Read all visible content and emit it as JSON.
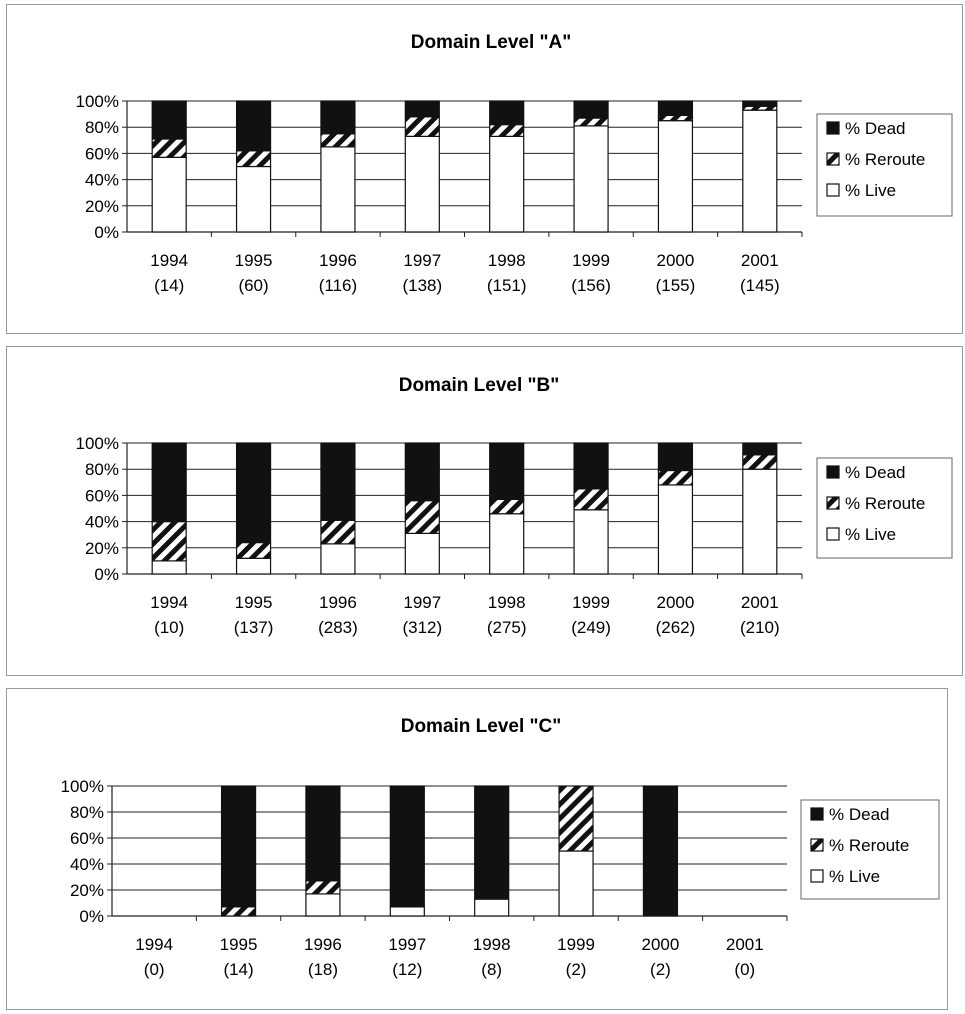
{
  "chart_data": [
    {
      "type": "bar",
      "stacked": true,
      "percent": true,
      "title": "Domain Level \"A\"",
      "categories": [
        "1994",
        "1995",
        "1996",
        "1997",
        "1998",
        "1999",
        "2000",
        "2001"
      ],
      "sublabels": [
        "(14)",
        "(60)",
        "(116)",
        "(138)",
        "(151)",
        "(156)",
        "(155)",
        "(145)"
      ],
      "yticks": [
        "0%",
        "20%",
        "40%",
        "60%",
        "80%",
        "100%"
      ],
      "ylim": [
        0,
        100
      ],
      "grid": true,
      "legend_position": "right",
      "legend": [
        "% Dead",
        "% Reroute",
        "% Live"
      ],
      "series": [
        {
          "name": "% Live",
          "fill": "white",
          "values": [
            57,
            50,
            65,
            73,
            73,
            81,
            85,
            93
          ]
        },
        {
          "name": "% Reroute",
          "fill": "hatch",
          "values": [
            14,
            12,
            10,
            15,
            9,
            6,
            4,
            3
          ]
        },
        {
          "name": "% Dead",
          "fill": "black",
          "values": [
            29,
            38,
            25,
            12,
            18,
            13,
            11,
            4
          ]
        }
      ]
    },
    {
      "type": "bar",
      "stacked": true,
      "percent": true,
      "title": "Domain Level \"B\"",
      "categories": [
        "1994",
        "1995",
        "1996",
        "1997",
        "1998",
        "1999",
        "2000",
        "2001"
      ],
      "sublabels": [
        "(10)",
        "(137)",
        "(283)",
        "(312)",
        "(275)",
        "(249)",
        "(262)",
        "(210)"
      ],
      "yticks": [
        "0%",
        "20%",
        "40%",
        "60%",
        "80%",
        "100%"
      ],
      "ylim": [
        0,
        100
      ],
      "grid": true,
      "legend_position": "right",
      "legend": [
        "% Dead",
        "% Reroute",
        "% Live"
      ],
      "series": [
        {
          "name": "% Live",
          "fill": "white",
          "values": [
            10,
            12,
            23,
            31,
            46,
            49,
            68,
            80
          ]
        },
        {
          "name": "% Reroute",
          "fill": "hatch",
          "values": [
            30,
            12,
            18,
            25,
            11,
            16,
            11,
            11
          ]
        },
        {
          "name": "% Dead",
          "fill": "black",
          "values": [
            60,
            76,
            59,
            44,
            43,
            35,
            21,
            9
          ]
        }
      ]
    },
    {
      "type": "bar",
      "stacked": true,
      "percent": true,
      "title": "Domain Level \"C\"",
      "categories": [
        "1994",
        "1995",
        "1996",
        "1997",
        "1998",
        "1999",
        "2000",
        "2001"
      ],
      "sublabels": [
        "(0)",
        "(14)",
        "(18)",
        "(12)",
        "(8)",
        "(2)",
        "(2)",
        "(0)"
      ],
      "yticks": [
        "0%",
        "20%",
        "40%",
        "60%",
        "80%",
        "100%"
      ],
      "ylim": [
        0,
        100
      ],
      "grid": true,
      "legend_position": "right",
      "legend": [
        "% Dead",
        "% Reroute",
        "% Live"
      ],
      "series": [
        {
          "name": "% Live",
          "fill": "white",
          "values": [
            0,
            0,
            17,
            7,
            13,
            50,
            0,
            0
          ]
        },
        {
          "name": "% Reroute",
          "fill": "hatch",
          "values": [
            0,
            7,
            10,
            0,
            0,
            50,
            0,
            0
          ]
        },
        {
          "name": "% Dead",
          "fill": "black",
          "values": [
            0,
            93,
            73,
            93,
            87,
            0,
            100,
            0
          ]
        }
      ]
    }
  ]
}
